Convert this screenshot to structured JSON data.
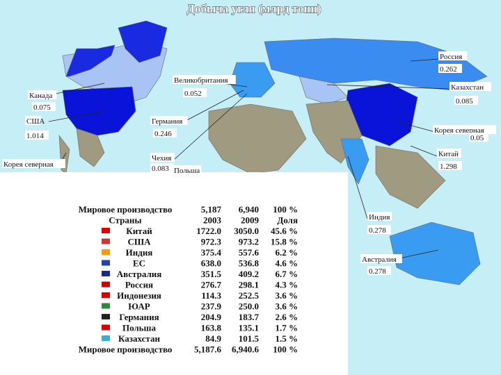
{
  "title": "Добыча угля (млрд тонн)",
  "map_labels": [
    {
      "country": "Россия",
      "value": "0.262"
    },
    {
      "country": "Канада",
      "value": "0.075"
    },
    {
      "country": "Великобритания",
      "value": "0.052"
    },
    {
      "country": "Казахстан",
      "value": "0.085"
    },
    {
      "country": "США",
      "value": "1.014"
    },
    {
      "country": "Германия",
      "value": "0.246"
    },
    {
      "country": "Корея северная",
      "value": "0.05"
    },
    {
      "country": "Чехия",
      "value": "0.083"
    },
    {
      "country": "Польша"
    },
    {
      "country": "Китай",
      "value": "1.298"
    },
    {
      "country": "Корея северная"
    },
    {
      "country": "Индия",
      "value": "0.278"
    },
    {
      "country": "Австралия",
      "value": "0.278"
    }
  ],
  "table": {
    "rows": [
      [
        "Мировое производство",
        "5,187",
        "6,940",
        "100 %"
      ],
      [
        "Страны",
        "2003",
        "2009",
        "Доля"
      ],
      [
        "Китай",
        "1722.0",
        "3050.0",
        "45.6 %"
      ],
      [
        "США",
        "972.3",
        "973.2",
        "15.8 %"
      ],
      [
        "Индия",
        "375.4",
        "557.6",
        "6.2 %"
      ],
      [
        "ЕС",
        "638.0",
        "536.8",
        "4.6 %"
      ],
      [
        "Австралия",
        "351.5",
        "409.2",
        "6.7 %"
      ],
      [
        "Россия",
        "276.7",
        "298.1",
        "4.3 %"
      ],
      [
        "Индонезия",
        "114.3",
        "252.5",
        "3.6 %"
      ],
      [
        "ЮАР",
        "237.9",
        "250.0",
        "3.6 %"
      ],
      [
        "Германия",
        "204.9",
        "183.7",
        "2.6 %"
      ],
      [
        "Польша",
        "163.8",
        "135.1",
        "1.7 %"
      ],
      [
        "Казахстан",
        "84.9",
        "101.5",
        "1.5 %"
      ],
      [
        "Мировое производство",
        "5,187.6",
        "6,940.6",
        "100 %"
      ]
    ]
  }
}
